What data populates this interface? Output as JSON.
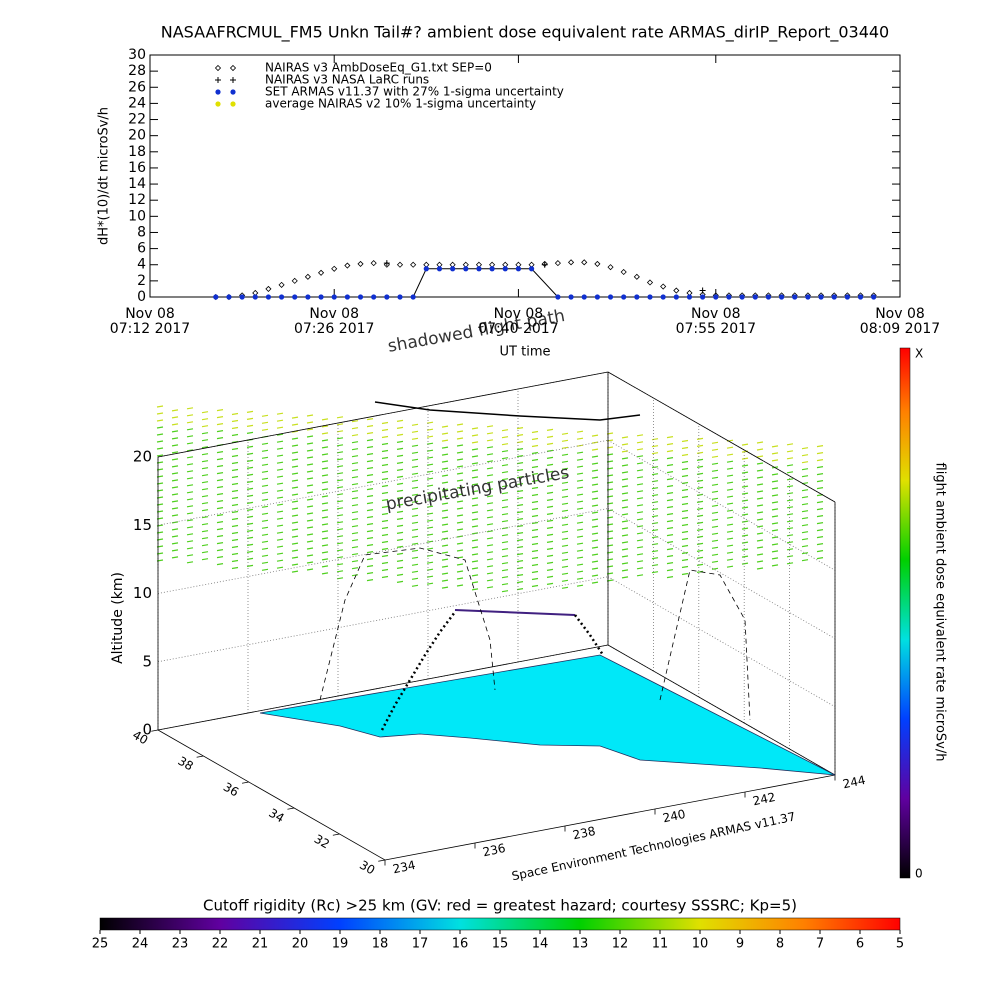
{
  "chart_data": [
    {
      "type": "scatter",
      "title": "NASAAFRCMUL_FM5 Unkn Tail#? ambient dose equivalent rate ARMAS_dirIP_Report_03440",
      "y_label": "dH*(10)/dt microSv/h",
      "x_label": "UT time",
      "xlim": [
        "2017-11-08 07:12",
        "2017-11-08 08:09"
      ],
      "xticks": [
        {
          "value": "2017-11-08 07:12",
          "label": [
            "Nov 08",
            "07:12 2017"
          ]
        },
        {
          "value": "2017-11-08 07:26",
          "label": [
            "Nov 08",
            "07:26 2017"
          ]
        },
        {
          "value": "2017-11-08 07:40",
          "label": [
            "Nov 08",
            "07:40 2017"
          ]
        },
        {
          "value": "2017-11-08 07:55",
          "label": [
            "Nov 08",
            "07:55 2017"
          ]
        },
        {
          "value": "2017-11-08 08:09",
          "label": [
            "Nov 08",
            "08:09 2017"
          ]
        }
      ],
      "ylim": [
        0,
        30
      ],
      "yticks": [
        0,
        2,
        4,
        6,
        8,
        10,
        12,
        14,
        16,
        18,
        20,
        22,
        24,
        26,
        28,
        30
      ],
      "series": [
        {
          "name": "NAIRAS v3 AmbDoseEq_G1.txt SEP=0",
          "marker": "diamond",
          "color": "#000000",
          "x": [
            "2017-11-08 07:17",
            "2017-11-08 07:18",
            "2017-11-08 07:19",
            "2017-11-08 07:20",
            "2017-11-08 07:21",
            "2017-11-08 07:22",
            "2017-11-08 07:23",
            "2017-11-08 07:24",
            "2017-11-08 07:25",
            "2017-11-08 07:26",
            "2017-11-08 07:27",
            "2017-11-08 07:28",
            "2017-11-08 07:29",
            "2017-11-08 07:30",
            "2017-11-08 07:31",
            "2017-11-08 07:32",
            "2017-11-08 07:33",
            "2017-11-08 07:34",
            "2017-11-08 07:35",
            "2017-11-08 07:36",
            "2017-11-08 07:37",
            "2017-11-08 07:38",
            "2017-11-08 07:39",
            "2017-11-08 07:40",
            "2017-11-08 07:41",
            "2017-11-08 07:42",
            "2017-11-08 07:43",
            "2017-11-08 07:44",
            "2017-11-08 07:45",
            "2017-11-08 07:46",
            "2017-11-08 07:47",
            "2017-11-08 07:48",
            "2017-11-08 07:49",
            "2017-11-08 07:50",
            "2017-11-08 07:51",
            "2017-11-08 07:52",
            "2017-11-08 07:53",
            "2017-11-08 07:54",
            "2017-11-08 07:55",
            "2017-11-08 07:56",
            "2017-11-08 07:57",
            "2017-11-08 07:58",
            "2017-11-08 07:59",
            "2017-11-08 08:00",
            "2017-11-08 08:01",
            "2017-11-08 08:02",
            "2017-11-08 08:03",
            "2017-11-08 08:04",
            "2017-11-08 08:05",
            "2017-11-08 08:06",
            "2017-11-08 08:07"
          ],
          "values": [
            0,
            0,
            0.2,
            0.5,
            1.0,
            1.5,
            2.0,
            2.5,
            3.0,
            3.5,
            3.9,
            4.1,
            4.2,
            4.0,
            4.0,
            4.0,
            4.0,
            4.0,
            4.0,
            4.0,
            4.0,
            4.0,
            4.0,
            4.0,
            4.0,
            4.1,
            4.2,
            4.3,
            4.3,
            4.1,
            3.7,
            3.1,
            2.5,
            1.8,
            1.3,
            0.8,
            0.5,
            0.3,
            0.2,
            0.2,
            0.2,
            0.2,
            0.2,
            0.2,
            0.2,
            0.2,
            0.2,
            0.2,
            0.2,
            0.2,
            0.2
          ]
        },
        {
          "name": "NAIRAS v3 NASA LaRC runs",
          "marker": "plus",
          "color": "#000000",
          "x": [
            "2017-11-08 07:30",
            "2017-11-08 07:42",
            "2017-11-08 07:54"
          ],
          "values": [
            4.2,
            4.0,
            0.8
          ]
        },
        {
          "name": "SET ARMAS v11.37 with 27% 1-sigma uncertainty",
          "marker": "dot",
          "color": "#1030d0",
          "x": [
            "2017-11-08 07:17",
            "2017-11-08 07:18",
            "2017-11-08 07:19",
            "2017-11-08 07:20",
            "2017-11-08 07:21",
            "2017-11-08 07:22",
            "2017-11-08 07:23",
            "2017-11-08 07:24",
            "2017-11-08 07:25",
            "2017-11-08 07:26",
            "2017-11-08 07:27",
            "2017-11-08 07:28",
            "2017-11-08 07:29",
            "2017-11-08 07:30",
            "2017-11-08 07:31",
            "2017-11-08 07:32",
            "2017-11-08 07:33",
            "2017-11-08 07:34",
            "2017-11-08 07:35",
            "2017-11-08 07:36",
            "2017-11-08 07:37",
            "2017-11-08 07:38",
            "2017-11-08 07:39",
            "2017-11-08 07:40",
            "2017-11-08 07:41",
            "2017-11-08 07:43",
            "2017-11-08 07:44",
            "2017-11-08 07:45",
            "2017-11-08 07:46",
            "2017-11-08 07:47",
            "2017-11-08 07:48",
            "2017-11-08 07:49",
            "2017-11-08 07:50",
            "2017-11-08 07:51",
            "2017-11-08 07:52",
            "2017-11-08 07:53",
            "2017-11-08 07:54",
            "2017-11-08 07:55",
            "2017-11-08 07:56",
            "2017-11-08 07:57",
            "2017-11-08 07:58",
            "2017-11-08 07:59",
            "2017-11-08 08:00",
            "2017-11-08 08:01",
            "2017-11-08 08:02",
            "2017-11-08 08:03",
            "2017-11-08 08:04",
            "2017-11-08 08:05",
            "2017-11-08 08:06",
            "2017-11-08 08:07"
          ],
          "values": [
            0,
            0,
            0,
            0,
            0,
            0,
            0,
            0,
            0,
            0,
            0,
            0,
            0,
            0,
            0,
            0,
            3.5,
            3.5,
            3.5,
            3.5,
            3.5,
            3.5,
            3.5,
            3.5,
            3.5,
            0,
            0,
            0,
            0,
            0,
            0,
            0,
            0,
            0,
            0,
            0,
            0,
            0,
            0,
            0,
            0,
            0,
            0,
            0,
            0,
            0,
            0,
            0,
            0,
            0
          ]
        },
        {
          "name": "average NAIRAS v2 10% 1-sigma uncertainty",
          "marker": "dot",
          "color": "#e0e000"
        }
      ]
    },
    {
      "type": "surface3d",
      "z_label": "Altitude (km)",
      "zlim": [
        0,
        20
      ],
      "zticks": [
        0,
        5,
        10,
        15,
        20
      ],
      "ylim": [
        30,
        40
      ],
      "yticks": [
        40,
        38,
        36,
        34,
        32,
        30
      ],
      "xlim": [
        234,
        244
      ],
      "xticks": [
        234,
        236,
        238,
        240,
        242,
        244
      ],
      "annotations": [
        "shadowed flight path",
        "precipitating particles",
        "Space Environment Technologies ARMAS v11.37"
      ],
      "colorbar": {
        "title": "flight ambient dose equivalent rate microSv/h",
        "top_label": "X",
        "bottom_label": 0
      }
    },
    {
      "type": "colorbar",
      "title": "Cutoff rigidity (Rc) >25 km (GV: red = greatest hazard; courtesy SSSRC; Kp=5)",
      "xlim": [
        25,
        5
      ],
      "xticks": [
        25,
        24,
        23,
        22,
        21,
        20,
        19,
        18,
        17,
        16,
        15,
        14,
        13,
        12,
        11,
        10,
        9,
        8,
        7,
        6,
        5
      ]
    }
  ]
}
